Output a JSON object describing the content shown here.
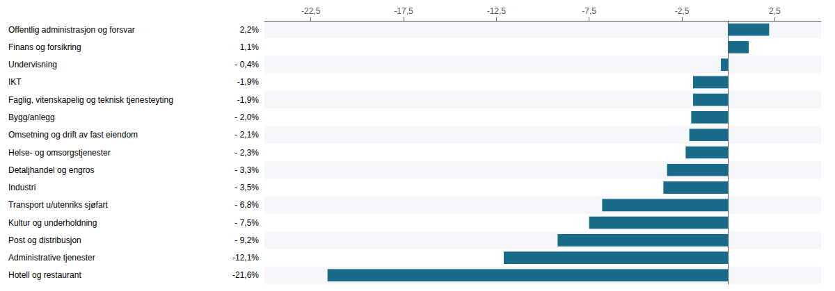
{
  "chart_data": {
    "type": "bar",
    "orientation": "horizontal",
    "categories": [
      "Offentlig administrasjon og forsvar",
      "Finans og forsikring",
      "Undervisning",
      "IKT",
      "Faglig, vitenskapelig og teknisk tjenesteyting",
      "Bygg/anlegg",
      "Omsetning og drift av fast eiendom",
      "Helse- og omsorgstjenester",
      "Detaljhandel og engros",
      "Industri",
      "Transport u/utenriks sjøfart",
      "Kultur og underholdning",
      "Post og distribusjon",
      "Administrative tjenester",
      "Hotell og restaurant"
    ],
    "values": [
      2.2,
      1.1,
      -0.4,
      -1.9,
      -1.9,
      -2.0,
      -2.1,
      -2.3,
      -3.3,
      -3.5,
      -6.8,
      -7.5,
      -9.2,
      -12.1,
      -21.6
    ],
    "value_labels": [
      "2,2%",
      "1,1%",
      "- 0,4%",
      "-1,9%",
      "-1,9%",
      "- 2,0%",
      "- 2,1%",
      "- 2,3%",
      "- 3,3%",
      "- 3,5%",
      "- 6,8%",
      "- 7,5%",
      "- 9,2%",
      "-12,1%",
      "-21,6%"
    ],
    "color": "#1a6b8a",
    "xlim": [
      -25,
      5
    ],
    "xticks": [
      {
        "value": -22.5,
        "label": "-22,5"
      },
      {
        "value": -17.5,
        "label": "-17,5"
      },
      {
        "value": -12.5,
        "label": "-12,5"
      },
      {
        "value": -7.5,
        "label": "-7,5"
      },
      {
        "value": -2.5,
        "label": "-2,5"
      },
      {
        "value": 2.5,
        "label": "2,5"
      }
    ],
    "grid": false
  }
}
